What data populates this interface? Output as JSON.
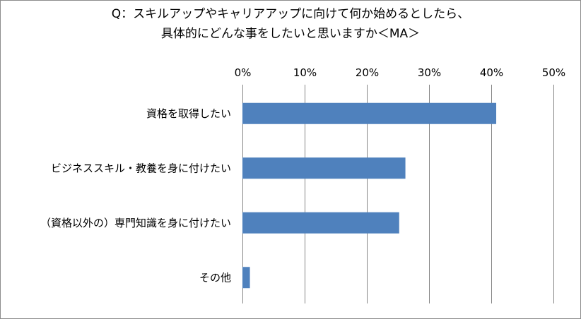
{
  "chart_data": {
    "type": "bar",
    "orientation": "horizontal",
    "title": [
      "Q：スキルアップやキャリアアップに向けて何か始めるとしたら、",
      "具体的にどんな事をしたいと思いますか＜MA＞"
    ],
    "categories": [
      "資格を取得したい",
      "ビジネススキル・教養を身に付けたい",
      "（資格以外の）専門知識を身に付けたい",
      "その他"
    ],
    "values": [
      40.8,
      26.2,
      25.2,
      1.2
    ],
    "value_unit": "%",
    "xlim": [
      0,
      50
    ],
    "x_ticks": [
      "0%",
      "10%",
      "20%",
      "30%",
      "40%",
      "50%"
    ],
    "x_axis_position": "top",
    "grid": true,
    "legend": "none",
    "bar_color": "#4f81bd"
  }
}
